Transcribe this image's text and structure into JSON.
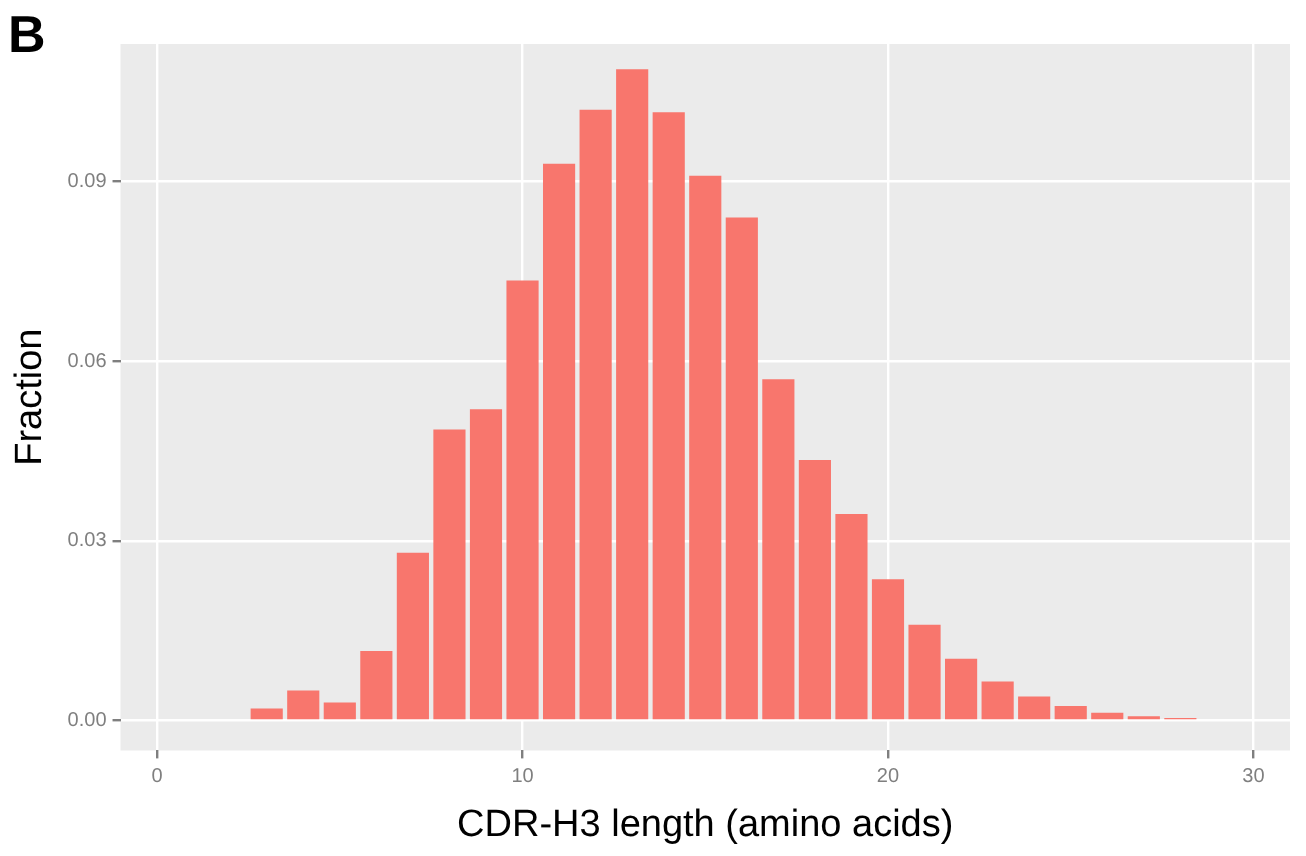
{
  "chart_data": {
    "type": "histogram",
    "xlabel": "CDR-H3 length (amino acids)",
    "ylabel": "Fraction",
    "annotations": [
      "B"
    ],
    "bins": [
      2.5,
      3.5,
      4.5,
      5.5,
      6.5,
      7.5,
      8.5,
      9.5,
      10.5,
      11.5,
      12.5,
      13.5,
      14.5,
      15.5,
      16.5,
      17.5,
      18.5,
      19.5,
      20.5,
      21.5,
      22.5,
      23.5,
      24.5,
      25.5,
      26.5,
      27.5,
      28.5,
      29.5
    ],
    "values": [
      0.002,
      0.005,
      0.003,
      0.0116,
      0.028,
      0.0486,
      0.052,
      0.0735,
      0.093,
      0.102,
      0.1088,
      0.1016,
      0.091,
      0.084,
      0.057,
      0.0435,
      0.0345,
      0.0236,
      0.016,
      0.0103,
      0.0065,
      0.004,
      0.0024,
      0.0013,
      0.0007,
      0.0004,
      0.0002
    ],
    "color": "#f8766d",
    "xlim": [
      -1,
      31
    ],
    "xticks": [
      0,
      10,
      20,
      30
    ],
    "ylim": [
      -0.005,
      0.113
    ],
    "yticks": [
      {
        "value": 0,
        "label": "0.00"
      },
      {
        "value": 0.03,
        "label": "0.03"
      },
      {
        "value": 0.06,
        "label": "0.06"
      },
      {
        "value": 0.09,
        "label": "0.09"
      }
    ],
    "grid": true
  }
}
